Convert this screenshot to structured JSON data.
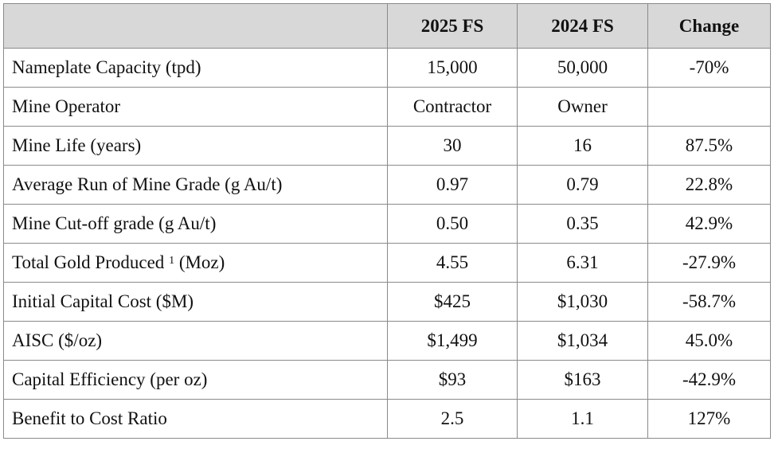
{
  "table": {
    "headers": [
      "",
      "2025 FS",
      "2024 FS",
      "Change"
    ],
    "rows": [
      {
        "label": "Nameplate Capacity (tpd)",
        "fs2025": "15,000",
        "fs2024": "50,000",
        "change": "-70%"
      },
      {
        "label": "Mine Operator",
        "fs2025": "Contractor",
        "fs2024": "Owner",
        "change": ""
      },
      {
        "label": "Mine Life (years)",
        "fs2025": "30",
        "fs2024": "16",
        "change": "87.5%"
      },
      {
        "label": "Average Run of Mine Grade (g Au/t)",
        "fs2025": "0.97",
        "fs2024": "0.79",
        "change": "22.8%"
      },
      {
        "label": "Mine Cut-off grade (g Au/t)",
        "fs2025": "0.50",
        "fs2024": "0.35",
        "change": "42.9%"
      },
      {
        "label_pre": "Total Gold Produced ",
        "label_sup": "1",
        "label_post": " (Moz)",
        "fs2025": "4.55",
        "fs2024": "6.31",
        "change": "-27.9%"
      },
      {
        "label": "Initial Capital Cost ($M)",
        "fs2025": "$425",
        "fs2024": "$1,030",
        "change": "-58.7%"
      },
      {
        "label": "AISC ($/oz)",
        "fs2025": "$1,499",
        "fs2024": "$1,034",
        "change": "45.0%"
      },
      {
        "label": "Capital Efficiency (per oz)",
        "fs2025": "$93",
        "fs2024": "$163",
        "change": "-42.9%"
      },
      {
        "label": "Benefit to Cost Ratio",
        "fs2025": "2.5",
        "fs2024": "1.1",
        "change": "127%"
      }
    ]
  }
}
